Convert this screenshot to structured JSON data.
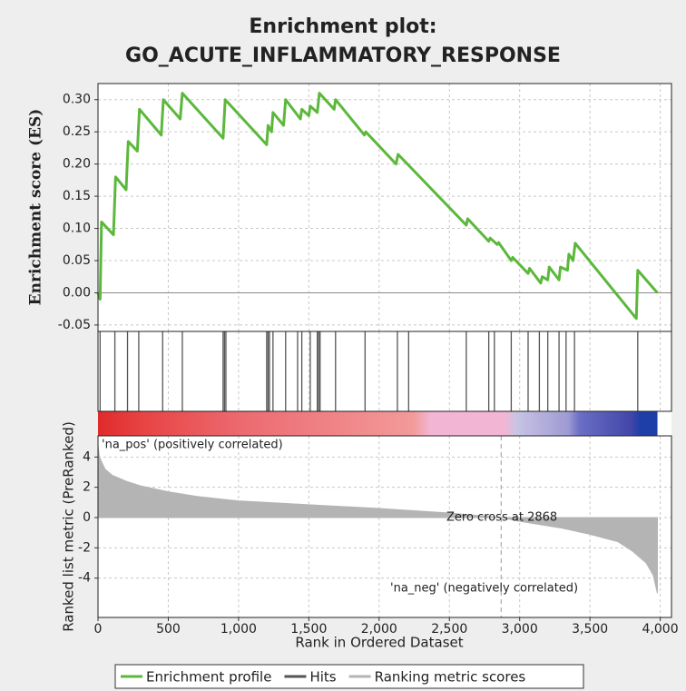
{
  "chart_data": [
    {
      "type": "line",
      "title": [
        "Enrichment plot:",
        "GO_ACUTE_INFLAMMATORY_RESPONSE"
      ],
      "ylabel": "Enrichment score (ES)",
      "xlim": [
        0,
        4080
      ],
      "ylim": [
        -0.06,
        0.325
      ],
      "yticks": [
        -0.05,
        {
          "value": 0,
          "label": "0.00"
        },
        0.05,
        {
          "value": 0.1,
          "label": "0.10"
        },
        0.15,
        {
          "value": 0.2,
          "label": "0.20"
        },
        0.25,
        {
          "value": 0.3,
          "label": "0.30"
        }
      ],
      "grid": true,
      "x": [
        0,
        15,
        25,
        110,
        125,
        200,
        215,
        280,
        295,
        450,
        465,
        585,
        600,
        890,
        905,
        1200,
        1210,
        1235,
        1245,
        1320,
        1335,
        1440,
        1450,
        1500,
        1510,
        1560,
        1575,
        1680,
        1690,
        1895,
        1905,
        2120,
        2135,
        2620,
        2630,
        2780,
        2790,
        2840,
        2850,
        2940,
        2950,
        3060,
        3070,
        3150,
        3160,
        3200,
        3210,
        3280,
        3290,
        3340,
        3350,
        3380,
        3395,
        3830,
        3840,
        3980
      ],
      "series": [
        {
          "name": "Enrichment profile",
          "color": "#5cb83c",
          "values": [
            0,
            -0.01,
            0.11,
            0.09,
            0.18,
            0.16,
            0.235,
            0.22,
            0.285,
            0.245,
            0.3,
            0.27,
            0.31,
            0.24,
            0.3,
            0.23,
            0.26,
            0.25,
            0.28,
            0.26,
            0.3,
            0.27,
            0.285,
            0.275,
            0.29,
            0.28,
            0.31,
            0.285,
            0.3,
            0.245,
            0.25,
            0.2,
            0.215,
            0.105,
            0.115,
            0.08,
            0.085,
            0.075,
            0.078,
            0.05,
            0.055,
            0.03,
            0.038,
            0.015,
            0.025,
            0.02,
            0.04,
            0.02,
            0.04,
            0.035,
            0.06,
            0.05,
            0.077,
            -0.04,
            0.035,
            0
          ]
        }
      ]
    },
    {
      "type": "hits",
      "xlim": [
        0,
        4080
      ],
      "x": [
        15,
        120,
        210,
        290,
        460,
        600,
        890,
        900,
        910,
        1200,
        1210,
        1220,
        1245,
        1335,
        1420,
        1450,
        1510,
        1560,
        1570,
        1580,
        1690,
        1900,
        2130,
        2210,
        2620,
        2780,
        2820,
        2940,
        3060,
        3140,
        3200,
        3280,
        3330,
        3390,
        3840
      ],
      "series": [
        {
          "name": "Hits",
          "color": "#555555"
        }
      ]
    },
    {
      "type": "area",
      "ylabel": "Ranked list metric (PreRanked)",
      "xlabel": "Rank in Ordered Dataset",
      "xlim": [
        0,
        4080
      ],
      "ylim": [
        -6.6,
        5.4
      ],
      "xticks": [
        0,
        500,
        {
          "value": 1000,
          "label": "1,000"
        },
        {
          "value": 1500,
          "label": "1,500"
        },
        {
          "value": 2000,
          "label": "2,000"
        },
        {
          "value": 2500,
          "label": "2,500"
        },
        {
          "value": 3000,
          "label": "3,000"
        },
        {
          "value": 3500,
          "label": "3,500"
        },
        {
          "value": 4000,
          "label": "4,000"
        }
      ],
      "yticks": [
        -4,
        -2,
        0,
        2,
        4
      ],
      "grid": true,
      "x": [
        0,
        10,
        50,
        100,
        200,
        300,
        500,
        700,
        1000,
        1500,
        2000,
        2500,
        2868,
        3000,
        3300,
        3500,
        3700,
        3800,
        3900,
        3950,
        3980
      ],
      "series": [
        {
          "name": "Ranking metric scores",
          "color": "#b4b4b4",
          "values": [
            4.8,
            4.0,
            3.2,
            2.8,
            2.4,
            2.1,
            1.7,
            1.4,
            1.1,
            0.85,
            0.6,
            0.3,
            0,
            -0.25,
            -0.7,
            -1.1,
            -1.6,
            -2.2,
            -3.0,
            -3.8,
            -5.0
          ]
        }
      ],
      "zero_cross": 2868,
      "annotations": [
        "'na_pos' (positively correlated)",
        "'na_neg' (negatively correlated)",
        "Zero cross at 2868"
      ]
    }
  ]
}
